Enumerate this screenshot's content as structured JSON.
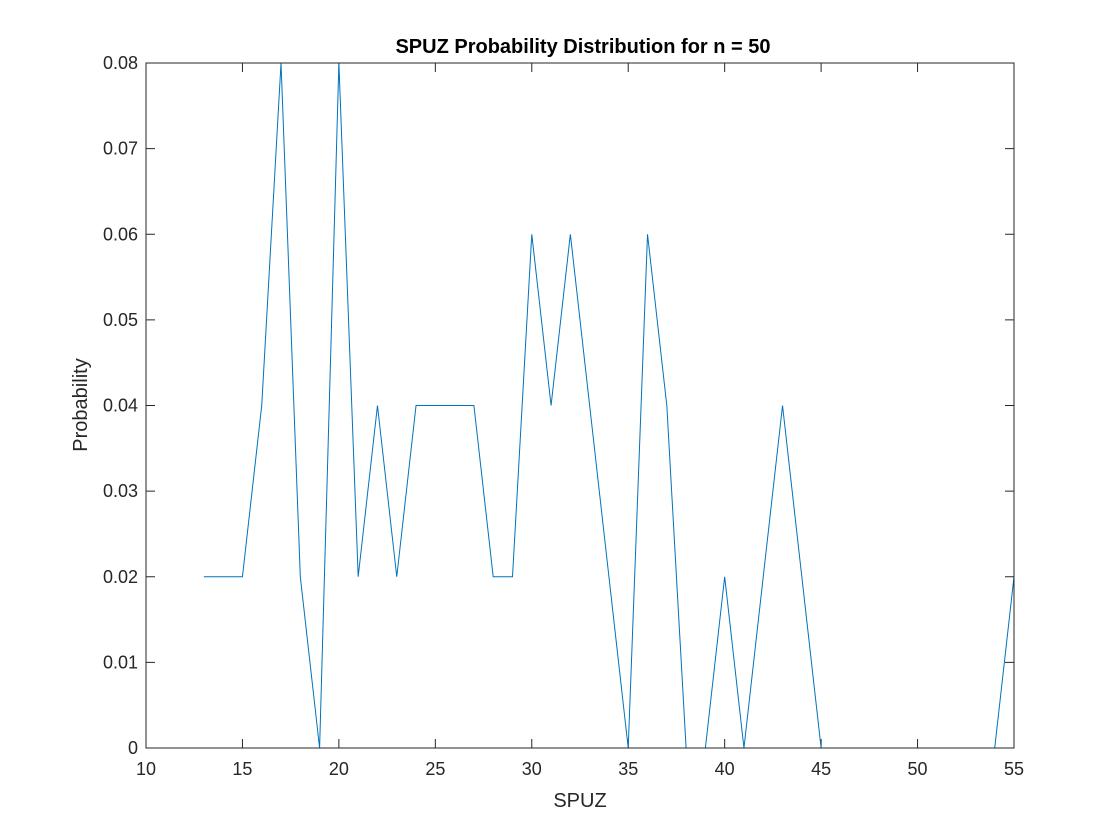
{
  "colors": {
    "series": "#0072BD",
    "axis": "#262626",
    "background": "#ffffff"
  },
  "chart_data": {
    "type": "line",
    "title": "SPUZ Probability Distribution for n = 50",
    "xlabel": "SPUZ",
    "ylabel": "Probability",
    "xlim": [
      10,
      55
    ],
    "ylim": [
      0,
      0.08
    ],
    "xticks": [
      10,
      15,
      20,
      25,
      30,
      35,
      40,
      45,
      50,
      55
    ],
    "xtick_labels": [
      "10",
      "15",
      "20",
      "25",
      "30",
      "35",
      "40",
      "45",
      "50",
      "55"
    ],
    "yticks": [
      0,
      0.01,
      0.02,
      0.03,
      0.04,
      0.05,
      0.06,
      0.07,
      0.08
    ],
    "ytick_labels": [
      "0",
      "0.01",
      "0.02",
      "0.03",
      "0.04",
      "0.05",
      "0.06",
      "0.07",
      "0.08"
    ],
    "grid": false,
    "series": [
      {
        "name": "probability",
        "x": [
          13,
          14,
          15,
          16,
          17,
          18,
          19,
          20,
          21,
          22,
          23,
          24,
          25,
          26,
          27,
          28,
          29,
          30,
          31,
          32,
          33,
          34,
          35,
          36,
          37,
          38,
          39,
          40,
          41,
          42,
          43,
          44,
          45,
          46,
          47,
          48,
          49,
          50,
          51,
          52,
          53,
          54,
          55
        ],
        "y": [
          0.02,
          0.02,
          0.02,
          0.04,
          0.08,
          0.02,
          0,
          0.08,
          0.02,
          0.04,
          0.02,
          0.04,
          0.04,
          0.04,
          0.04,
          0.02,
          0.02,
          0.06,
          0.04,
          0.06,
          0.04,
          0.02,
          0,
          0.06,
          0.04,
          0,
          0,
          0.02,
          0,
          0.02,
          0.04,
          0.02,
          0,
          0,
          0,
          0,
          0,
          0,
          0,
          0,
          0,
          0,
          0.02
        ]
      }
    ]
  }
}
